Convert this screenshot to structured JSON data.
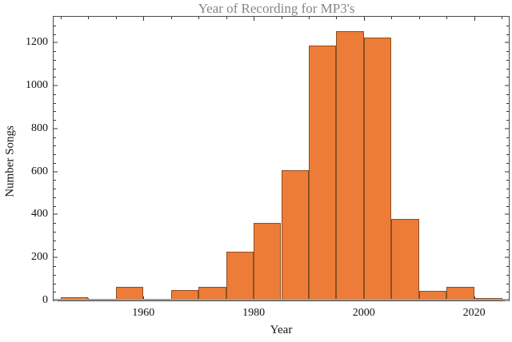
{
  "chart_data": {
    "type": "bar",
    "chart_kind": "histogram",
    "title": "Year of Recording for MP3's",
    "xlabel": "Year",
    "ylabel": "Number Songs",
    "bin_width_years": 5,
    "bin_start_years": [
      1945,
      1950,
      1955,
      1960,
      1965,
      1970,
      1975,
      1980,
      1985,
      1990,
      1995,
      2000,
      2005,
      2010,
      2015,
      2020
    ],
    "counts": [
      16,
      6,
      63,
      9,
      47,
      65,
      227,
      360,
      606,
      1185,
      1254,
      1223,
      380,
      44,
      63,
      11
    ],
    "xlim": [
      1943.7,
      2026.3
    ],
    "ylim": [
      0,
      1320
    ],
    "x_major_ticks": [
      1960,
      1980,
      2000,
      2020
    ],
    "x_major_tick_labels": [
      "1960",
      "1980",
      "2000",
      "2020"
    ],
    "x_minor_tick_start": 1945,
    "x_minor_tick_end": 2025,
    "x_minor_tick_step": 5,
    "y_major_ticks": [
      0,
      200,
      400,
      600,
      800,
      1000,
      1200
    ],
    "y_major_tick_labels": [
      "0",
      "200",
      "400",
      "600",
      "800",
      "1000",
      "1200"
    ],
    "y_minor_tick_step": 40,
    "grid": false,
    "frame": true,
    "colors": {
      "background": "#FFFFFF",
      "bar_fill": "#ED7C38",
      "bar_edge": "#8C5022",
      "title_text": "#868686",
      "axis_frame": "#4A4A4A",
      "tick": "#3A3A3A",
      "y_major_tick": "#999999",
      "baseline": "#A0A0A0",
      "tick_label": "#111111"
    }
  }
}
